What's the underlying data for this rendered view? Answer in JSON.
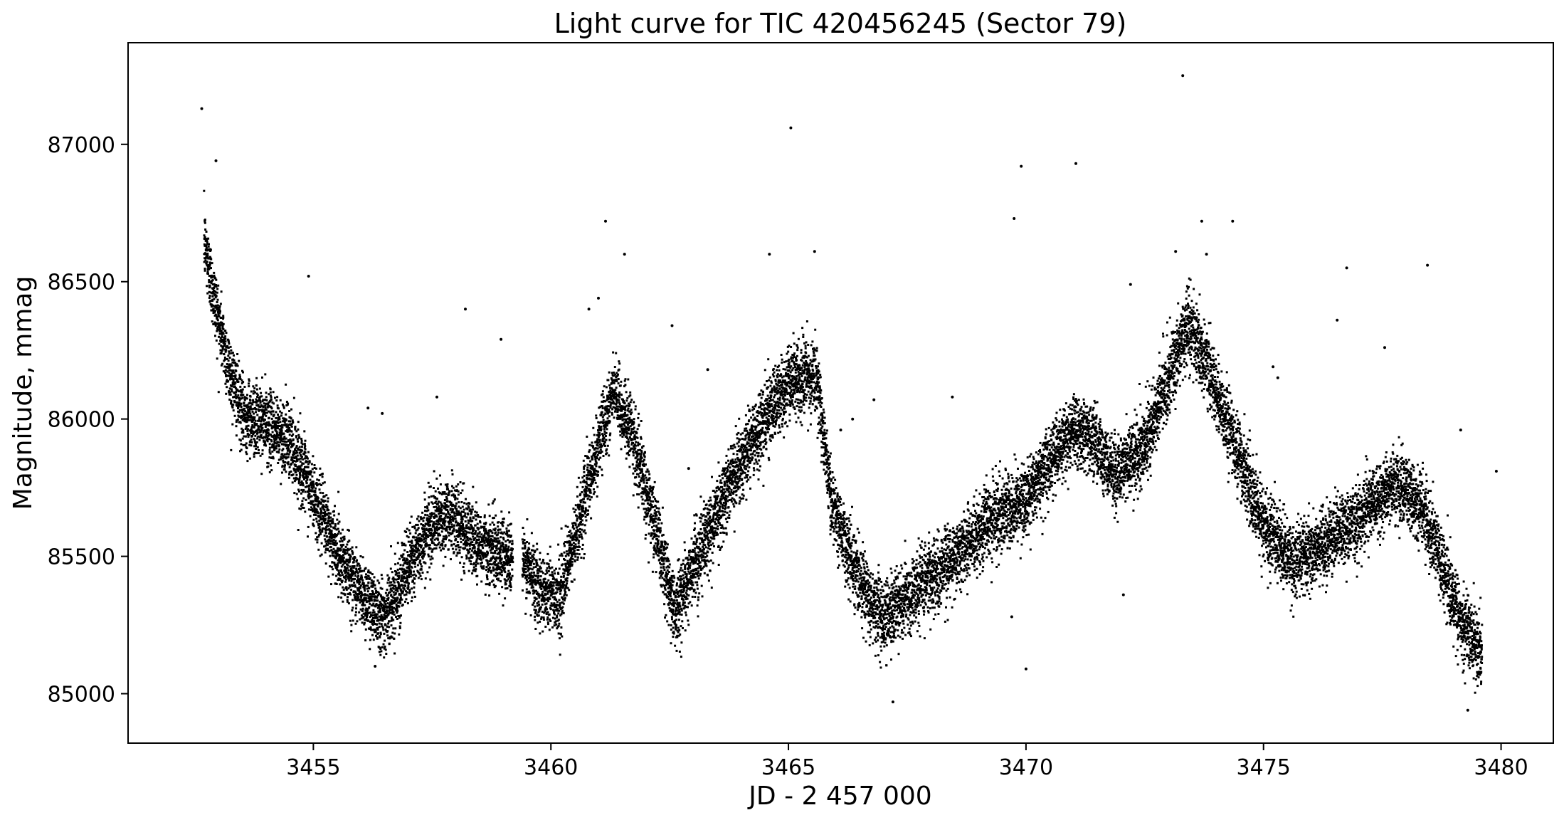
{
  "chart_data": {
    "type": "scatter",
    "title": "Light curve for TIC 420456245 (Sector 79)",
    "xlabel": "JD - 2 457 000",
    "ylabel": "Magnitude, mmag",
    "xlim": [
      3451.1,
      3481.1
    ],
    "ylim": [
      84820,
      87370
    ],
    "xticks": [
      3455,
      3460,
      3465,
      3470,
      3475,
      3480
    ],
    "xtick_labels": [
      "3455",
      "3460",
      "3465",
      "3470",
      "3475",
      "3480"
    ],
    "yticks": [
      85000,
      85500,
      86000,
      86500,
      87000
    ],
    "ytick_labels": [
      "85000",
      "85500",
      "86000",
      "86500",
      "87000"
    ],
    "y_inverted": false,
    "grid": false,
    "legend": "none",
    "marker_color": "#000000",
    "series": [
      {
        "trend": [
          [
            3452.7,
            86650
          ],
          [
            3452.9,
            86450
          ],
          [
            3453.2,
            86200
          ],
          [
            3453.5,
            86020
          ],
          [
            3454.0,
            85980
          ],
          [
            3454.5,
            85920
          ],
          [
            3455.0,
            85720
          ],
          [
            3455.5,
            85520
          ],
          [
            3456.0,
            85370
          ],
          [
            3456.5,
            85280
          ],
          [
            3457.0,
            85460
          ],
          [
            3457.5,
            85620
          ],
          [
            3457.9,
            85650
          ],
          [
            3458.5,
            85540
          ],
          [
            3459.15,
            85500
          ],
          [
            3459.4,
            85480
          ],
          [
            3459.8,
            85380
          ],
          [
            3460.2,
            85350
          ],
          [
            3460.7,
            85700
          ],
          [
            3461.3,
            86100
          ],
          [
            3461.7,
            85950
          ],
          [
            3462.2,
            85600
          ],
          [
            3462.6,
            85300
          ],
          [
            3463.2,
            85540
          ],
          [
            3463.8,
            85780
          ],
          [
            3464.5,
            86000
          ],
          [
            3465.0,
            86130
          ],
          [
            3465.6,
            86150
          ],
          [
            3465.9,
            85700
          ],
          [
            3466.4,
            85450
          ],
          [
            3467.0,
            85270
          ],
          [
            3467.7,
            85380
          ],
          [
            3468.5,
            85500
          ],
          [
            3469.3,
            85640
          ],
          [
            3470.0,
            85700
          ],
          [
            3470.5,
            85850
          ],
          [
            3471.0,
            85960
          ],
          [
            3471.4,
            85920
          ],
          [
            3471.9,
            85800
          ],
          [
            3472.5,
            85900
          ],
          [
            3473.1,
            86200
          ],
          [
            3473.4,
            86350
          ],
          [
            3473.9,
            86150
          ],
          [
            3474.4,
            85900
          ],
          [
            3475.0,
            85620
          ],
          [
            3475.6,
            85480
          ],
          [
            3476.2,
            85540
          ],
          [
            3477.0,
            85640
          ],
          [
            3477.8,
            85770
          ],
          [
            3478.4,
            85650
          ],
          [
            3479.1,
            85280
          ],
          [
            3479.6,
            85150
          ]
        ],
        "scatter_mmag": 65,
        "n_points": 17000,
        "gaps": [
          [
            3459.2,
            3459.4
          ]
        ]
      }
    ],
    "outliers": [
      [
        3452.65,
        87130
      ],
      [
        3452.95,
        86940
      ],
      [
        3454.9,
        86520
      ],
      [
        3458.2,
        86400
      ],
      [
        3458.95,
        86290
      ],
      [
        3461.15,
        86720
      ],
      [
        3461.55,
        86600
      ],
      [
        3462.55,
        86340
      ],
      [
        3464.6,
        86600
      ],
      [
        3465.05,
        87060
      ],
      [
        3465.55,
        86610
      ],
      [
        3469.75,
        86730
      ],
      [
        3469.9,
        86920
      ],
      [
        3471.05,
        86930
      ],
      [
        3472.2,
        86490
      ],
      [
        3473.15,
        86610
      ],
      [
        3473.3,
        87250
      ],
      [
        3474.35,
        86720
      ],
      [
        3473.7,
        86720
      ],
      [
        3476.55,
        86360
      ],
      [
        3476.75,
        86550
      ],
      [
        3477.55,
        86260
      ],
      [
        3478.45,
        86560
      ],
      [
        3469.7,
        85280
      ],
      [
        3470.0,
        85090
      ],
      [
        3456.3,
        85100
      ],
      [
        3467.2,
        84970
      ],
      [
        3479.3,
        84940
      ],
      [
        3479.9,
        85810
      ],
      [
        3479.15,
        85960
      ],
      [
        3472.05,
        85360
      ],
      [
        3456.15,
        86040
      ],
      [
        3456.45,
        86020
      ],
      [
        3457.6,
        86080
      ],
      [
        3466.35,
        86000
      ],
      [
        3466.8,
        86070
      ],
      [
        3468.45,
        86080
      ],
      [
        3475.2,
        86190
      ],
      [
        3475.3,
        86150
      ],
      [
        3473.8,
        86600
      ],
      [
        3463.3,
        86180
      ],
      [
        3462.9,
        85820
      ],
      [
        3466.1,
        85960
      ],
      [
        3460.8,
        86400
      ],
      [
        3461.0,
        86440
      ]
    ]
  }
}
